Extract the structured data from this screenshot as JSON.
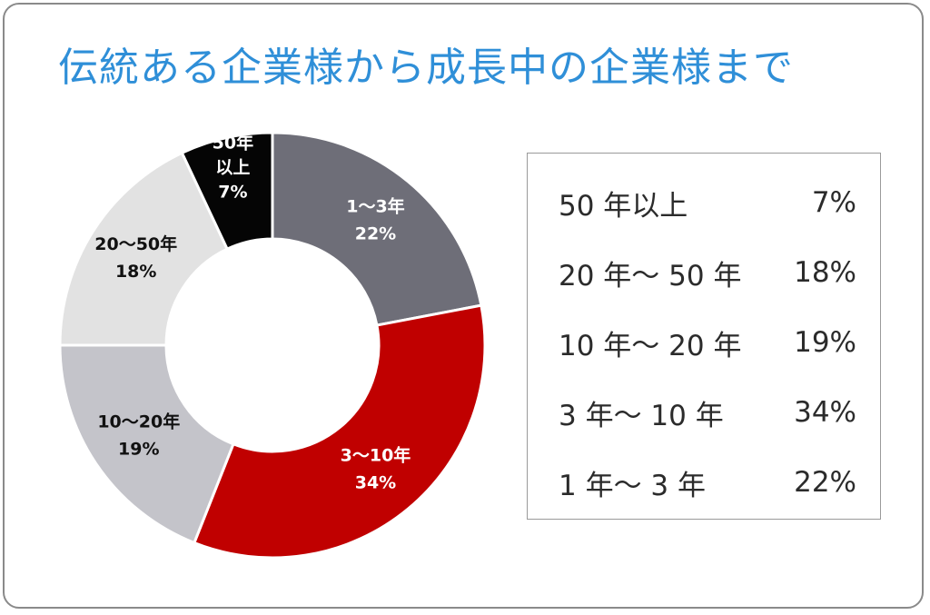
{
  "title": "伝統ある企業様から成長中の企業様まで",
  "chart_data": {
    "type": "pie",
    "title": "伝統ある企業様から成長中の企業様まで",
    "slices": [
      {
        "key": "y1to3",
        "label": "1〜3年",
        "value": 22,
        "value_label": "22%",
        "color": "#6e6e78",
        "text_color": "#ffffff"
      },
      {
        "key": "y3to10",
        "label": "3〜10年",
        "value": 34,
        "value_label": "34%",
        "color": "#c00000",
        "text_color": "#ffffff"
      },
      {
        "key": "y10to20",
        "label": "10〜20年",
        "value": 19,
        "value_label": "19%",
        "color": "#c4c4ca",
        "text_color": "#111111"
      },
      {
        "key": "y20to50",
        "label": "20〜50年",
        "value": 18,
        "value_label": "18%",
        "color": "#e2e2e2",
        "text_color": "#111111"
      },
      {
        "key": "y50plus",
        "label": "50年 以上",
        "value": 7,
        "value_label": "7%",
        "color": "#050505",
        "text_color": "#ffffff"
      }
    ],
    "start": "12 o'clock",
    "direction": "clockwise",
    "donut": true
  },
  "legend": {
    "position": "right",
    "items": [
      {
        "label": "50 年以上",
        "value": "7%"
      },
      {
        "label": "20 年〜 50 年",
        "value": "18%"
      },
      {
        "label": "10 年〜 20 年",
        "value": "19%"
      },
      {
        "label": "3 年〜 10 年",
        "value": "34%"
      },
      {
        "label": "1 年〜 3 年",
        "value": "22%"
      }
    ]
  }
}
